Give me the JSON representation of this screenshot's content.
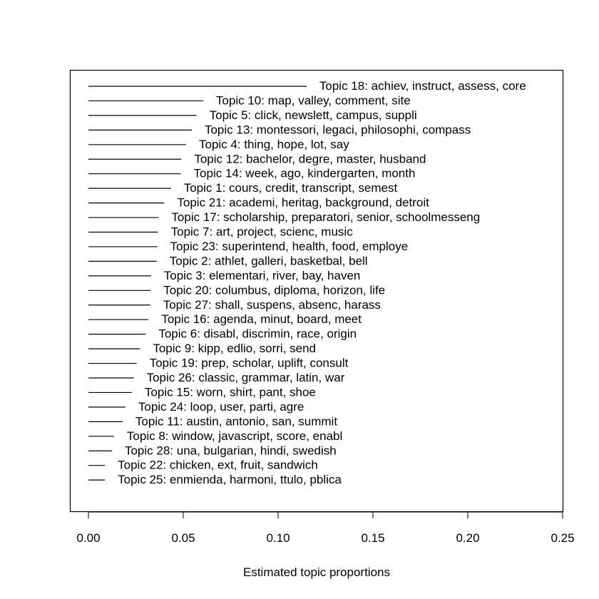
{
  "chart_data": {
    "type": "bar",
    "orientation": "horizontal",
    "title": "",
    "xlabel": "Estimated topic proportions",
    "ylabel": "",
    "xlim": [
      0.0,
      0.25
    ],
    "xticks": [
      "0.00",
      "0.05",
      "0.10",
      "0.15",
      "0.20",
      "0.25"
    ],
    "xtick_values": [
      0.0,
      0.05,
      0.1,
      0.15,
      0.2,
      0.25
    ],
    "bars": [
      {
        "label": "Topic 18: achiev, instruct, assess, core",
        "value": 0.115
      },
      {
        "label": "Topic 10: map, valley, comment, site",
        "value": 0.0605
      },
      {
        "label": "Topic 5: click, newslett, campus, suppli",
        "value": 0.057
      },
      {
        "label": "Topic 13: montessori, legaci, philosophi, compass",
        "value": 0.0545
      },
      {
        "label": "Topic 4: thing, hope, lot, say",
        "value": 0.0515
      },
      {
        "label": "Topic 12: bachelor, degre, master, husband",
        "value": 0.049
      },
      {
        "label": "Topic 14: week, ago, kindergarten, month",
        "value": 0.0487
      },
      {
        "label": "Topic 1: cours, credit, transcript, semest",
        "value": 0.0435
      },
      {
        "label": "Topic 21: academi, heritag, background, detroit",
        "value": 0.04
      },
      {
        "label": "Topic 17: scholarship, preparatori, senior, schoolmesseng",
        "value": 0.037
      },
      {
        "label": "Topic 7: art, project, scienc, music",
        "value": 0.0367
      },
      {
        "label": "Topic 23: superintend, health, food, employe",
        "value": 0.0363
      },
      {
        "label": "Topic 2: athlet, galleri, basketbal, bell",
        "value": 0.036
      },
      {
        "label": "Topic 3: elementari, river, bay, haven",
        "value": 0.033
      },
      {
        "label": "Topic 20: columbus, diploma, horizon, life",
        "value": 0.0328
      },
      {
        "label": "Topic 27: shall, suspens, absenc, harass",
        "value": 0.0326
      },
      {
        "label": "Topic 16: agenda, minut, board, meet",
        "value": 0.0317
      },
      {
        "label": "Topic 6: disabl, discrimin, race, origin",
        "value": 0.0302
      },
      {
        "label": "Topic 9: kipp, edlio, sorri, send",
        "value": 0.0272
      },
      {
        "label": "Topic 19: prep, scholar, uplift, consult",
        "value": 0.0254
      },
      {
        "label": "Topic 26: classic, grammar, latin, war",
        "value": 0.0239
      },
      {
        "label": "Topic 15: worn, shirt, pant, shoe",
        "value": 0.0229
      },
      {
        "label": "Topic 24: loop, user, parti, agre",
        "value": 0.0195
      },
      {
        "label": "Topic 11: austin, antonio, san, summit",
        "value": 0.018
      },
      {
        "label": "Topic 8: window, javascript, score, enabl",
        "value": 0.0135
      },
      {
        "label": "Topic 28: una, bulgarian, hindi, swedish",
        "value": 0.0124
      },
      {
        "label": "Topic 22: chicken, ext, fruit, sandwich",
        "value": 0.0087
      },
      {
        "label": "Topic 25: enmienda, harmoni, ttulo, pblica",
        "value": 0.0087
      }
    ]
  }
}
